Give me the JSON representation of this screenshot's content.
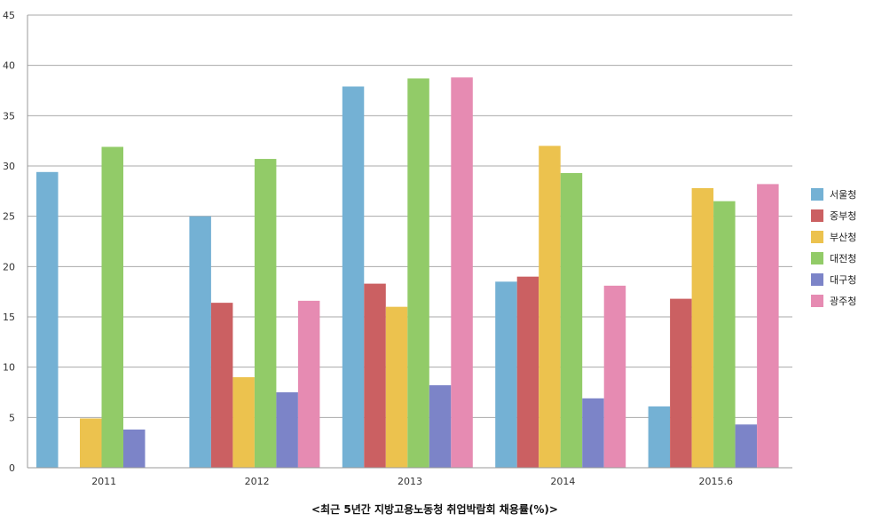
{
  "chart_data": {
    "type": "bar",
    "title": "<최근 5년간 지방고용노동청 취업박람회 채용률(%)>",
    "xlabel": "",
    "ylabel": "",
    "categories": [
      "2011",
      "2012",
      "2013",
      "2014",
      "2015.6"
    ],
    "ylim": [
      0,
      45
    ],
    "yticks": [
      0,
      5,
      10,
      15,
      20,
      25,
      30,
      35,
      40,
      45
    ],
    "grid": true,
    "legend_position": "right",
    "series": [
      {
        "name": "서울청",
        "color": "#74b1d4",
        "values": [
          29.4,
          25.0,
          37.9,
          18.5,
          6.1
        ]
      },
      {
        "name": "중부청",
        "color": "#cb6062",
        "values": [
          0,
          16.4,
          18.3,
          19.0,
          16.8
        ]
      },
      {
        "name": "부산청",
        "color": "#ecc24e",
        "values": [
          4.9,
          9.0,
          16.0,
          32.0,
          27.8
        ]
      },
      {
        "name": "대전청",
        "color": "#92cb68",
        "values": [
          31.9,
          30.7,
          38.7,
          29.3,
          26.5
        ]
      },
      {
        "name": "대구청",
        "color": "#7c84c8",
        "values": [
          3.8,
          7.5,
          8.2,
          6.9,
          4.3
        ]
      },
      {
        "name": "광주청",
        "color": "#e68bb2",
        "values": [
          0,
          16.6,
          38.8,
          18.1,
          28.2
        ]
      }
    ]
  }
}
